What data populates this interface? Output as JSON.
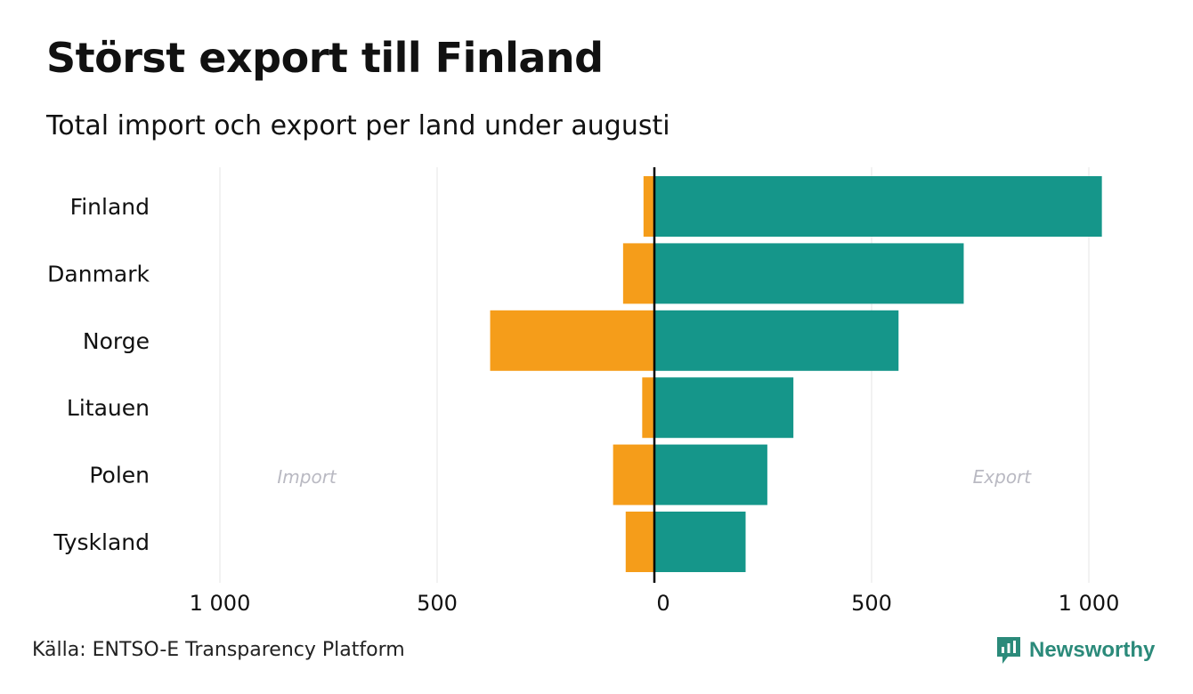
{
  "header": {
    "title": "Störst export till Finland",
    "subtitle": "Total import och export per land under augusti"
  },
  "footer": {
    "source": "Källa: ENTSO-E Transparency Platform",
    "logo_text": "Newsworthy"
  },
  "colors": {
    "import": "#F59D1A",
    "export": "#15968A",
    "grid": "#E6E6E6",
    "annotation": "#B9B9C2",
    "logo": "#2B8A7A"
  },
  "chart_data": {
    "type": "bar",
    "orientation": "horizontal-diverging",
    "categories": [
      "Finland",
      "Danmark",
      "Norge",
      "Litauen",
      "Polen",
      "Tyskland"
    ],
    "series": [
      {
        "name": "Import",
        "values": [
          25,
          72,
          378,
          28,
          95,
          66
        ]
      },
      {
        "name": "Export",
        "values": [
          1030,
          712,
          562,
          320,
          260,
          210
        ]
      }
    ],
    "xlim": [
      -1000,
      1000
    ],
    "x_ticks": [
      -1000,
      -500,
      0,
      500,
      1000
    ],
    "x_tick_labels": [
      "1 000",
      "500",
      "0",
      "500",
      "1 000"
    ],
    "annotations": [
      "Import",
      "Export"
    ],
    "grid": true,
    "legend": "none"
  }
}
